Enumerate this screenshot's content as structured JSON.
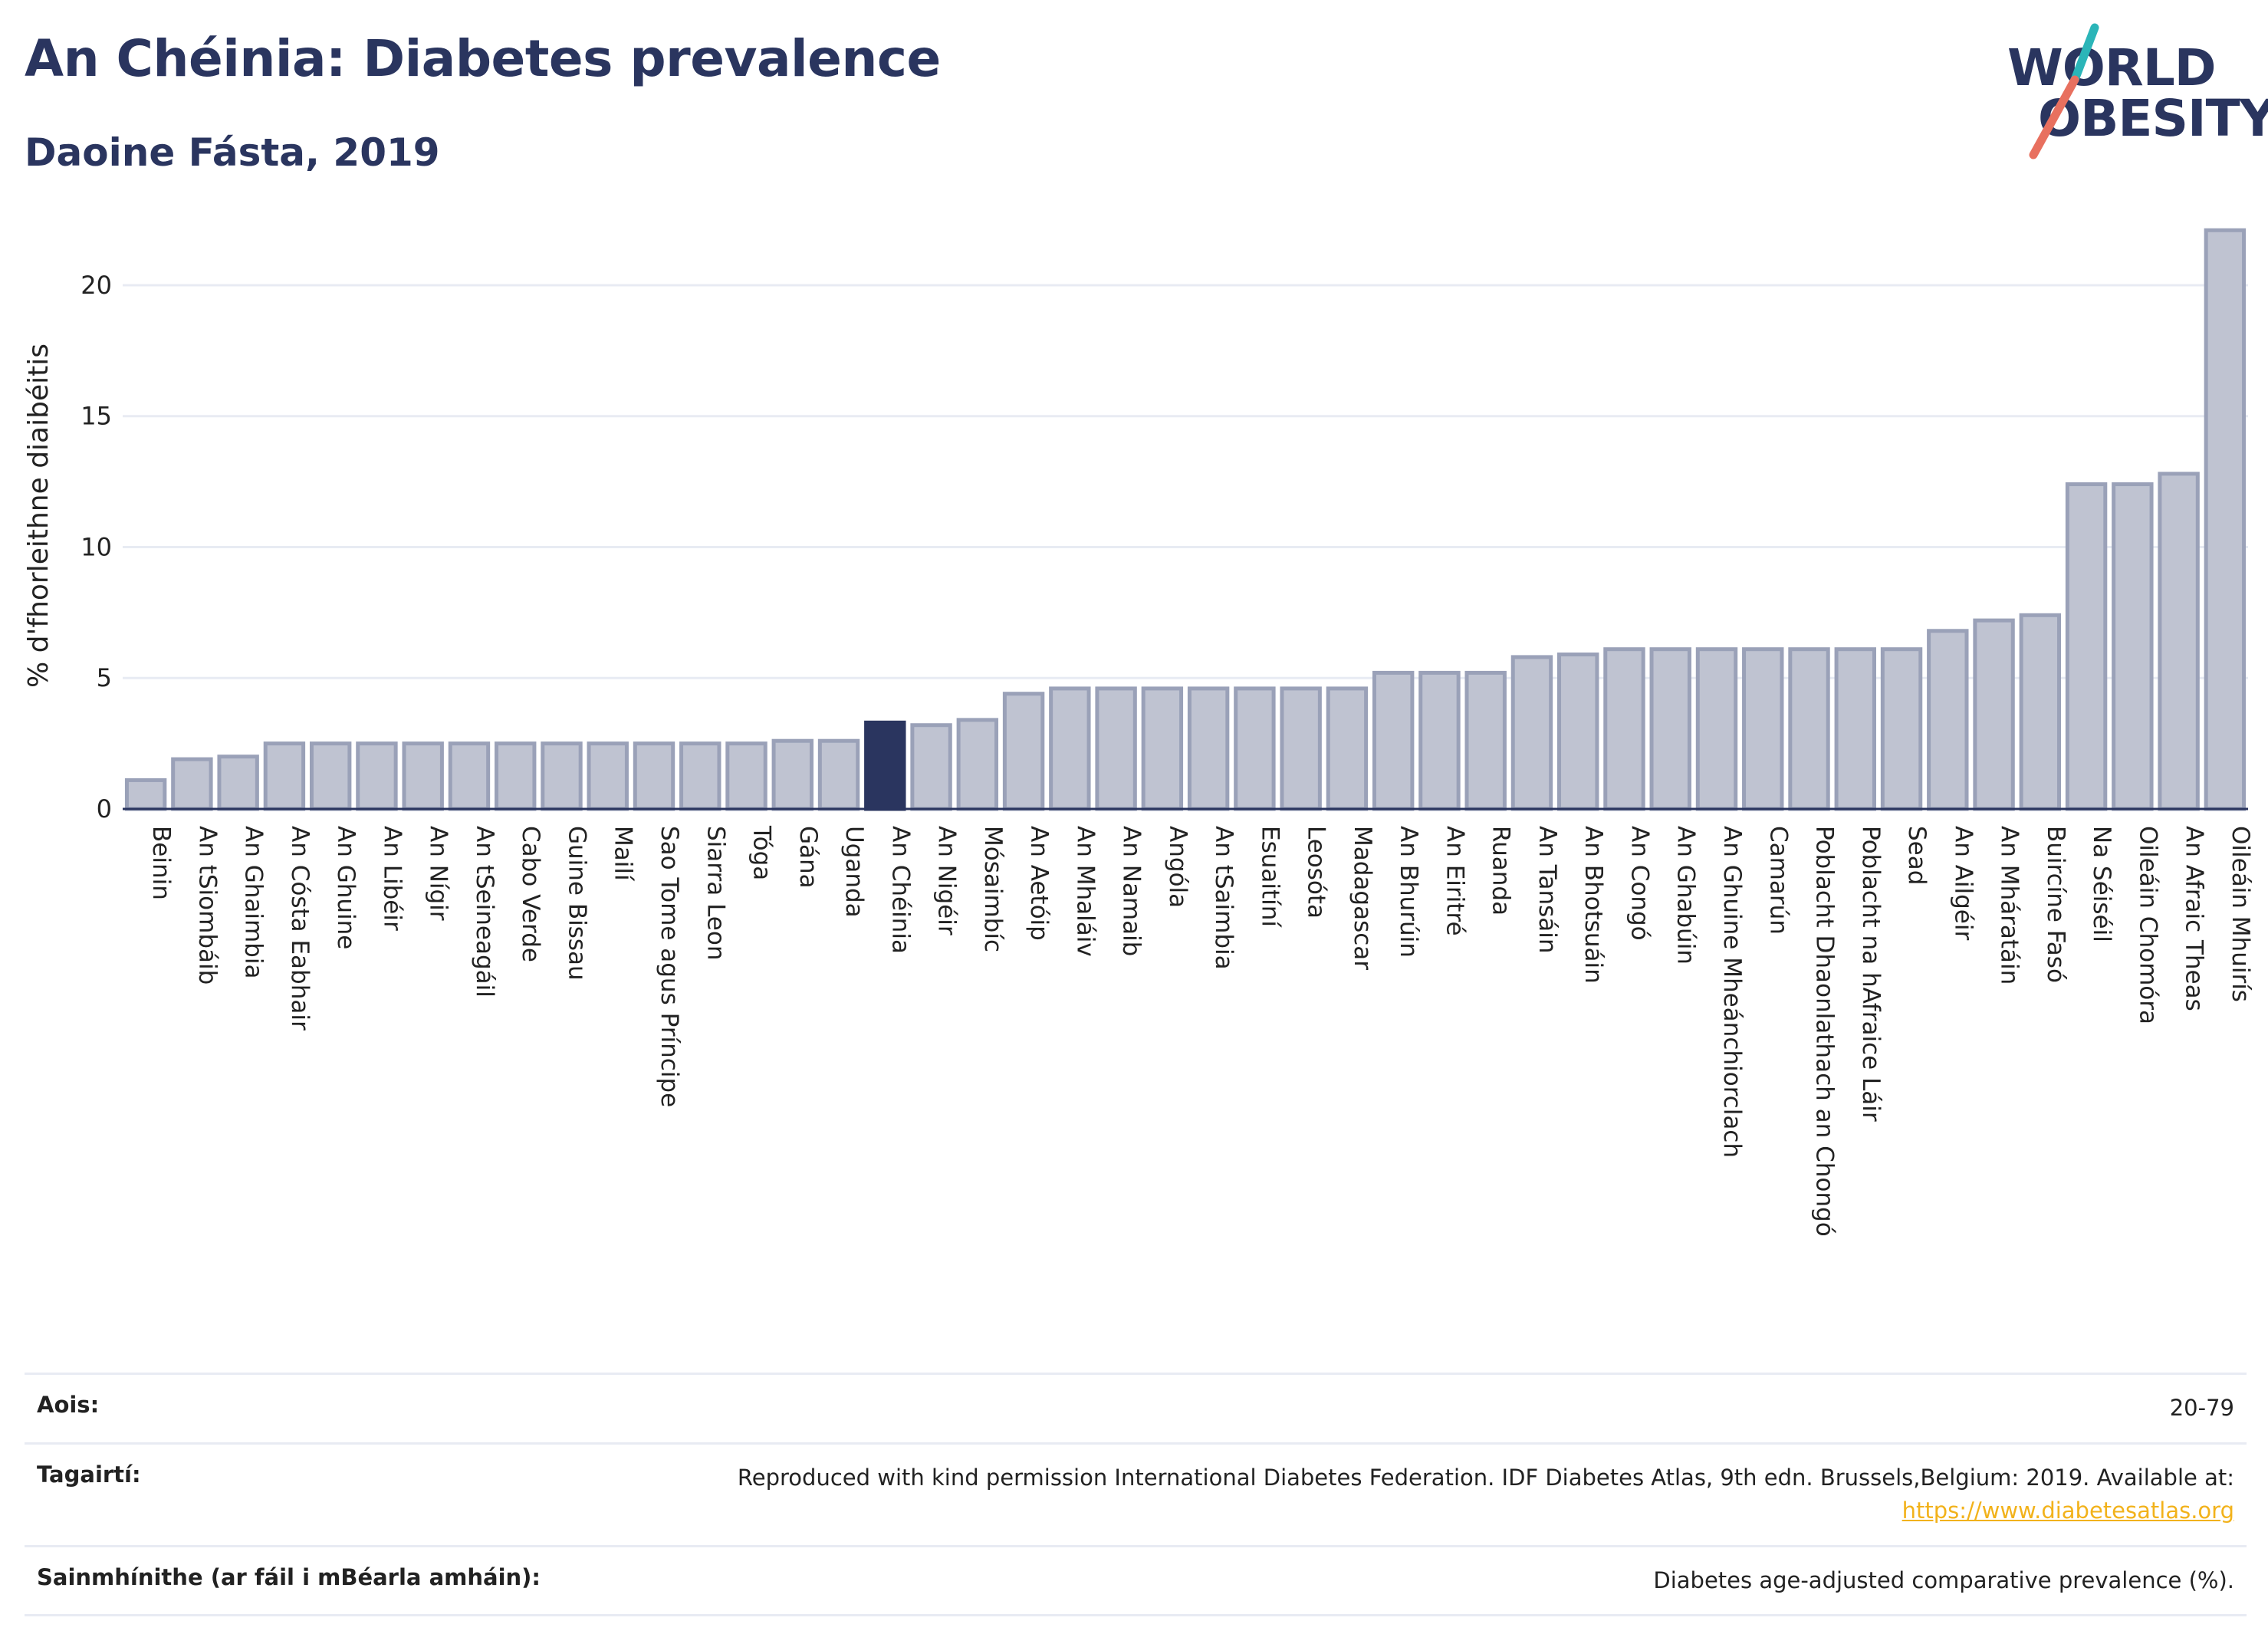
{
  "header": {
    "title": "An Chéinia: Diabetes prevalence",
    "subtitle": "Daoine Fásta, 2019"
  },
  "logo": {
    "line1": "WORLD",
    "line2": "OBESITY"
  },
  "colors": {
    "highlight": "#2a355f",
    "bar_fill": "#bfc3d1",
    "bar_stroke": "#9aa1b8",
    "slash_teal": "#2bb5b8",
    "slash_red": "#e8705f",
    "link": "#f2b21b"
  },
  "chart_data": {
    "type": "bar",
    "ylabel": "% d'fhorleithne diaibéitis",
    "ylim": [
      0,
      22.4
    ],
    "yticks": [
      0,
      5,
      10,
      15,
      20
    ],
    "grid": true,
    "highlight_category": "An Chéinia",
    "categories": [
      "Beinin",
      "An tSiombáib",
      "An Ghaimbia",
      "An Cósta Eabhair",
      "An Ghuine",
      "An Libéir",
      "An Nígir",
      "An tSeineagáil",
      "Cabo Verde",
      "Guine Bissau",
      "Mailí",
      "Sao Tome agus Príncipe",
      "Siarra Leon",
      "Tóga",
      "Gána",
      "Uganda",
      "An Chéinia",
      "An Nigéir",
      "Mósaimbíc",
      "An Aetóip",
      "An Mhaláiv",
      "An Namaib",
      "Angóla",
      "An tSaimbia",
      "Esuaitíní",
      "Leosóta",
      "Madagascar",
      "An Bhurúin",
      "An Eiritré",
      "Ruanda",
      "An Tansáin",
      "An Bhotsuáin",
      "An Congó",
      "An Ghabúin",
      "An Ghuine Mheánchiorclach",
      "Camarún",
      "Poblacht Dhaonlathach an Chongó",
      "Poblacht na hAfraice Láir",
      "Sead",
      "An Ailgéir",
      "An Mháratáin",
      "Buircíne Fasó",
      "Na Séiséil",
      "Oileáin Chomóra",
      "An Afraic Theas",
      "Oileáin Mhuirís"
    ],
    "values": [
      1.1,
      1.9,
      2.0,
      2.5,
      2.5,
      2.5,
      2.5,
      2.5,
      2.5,
      2.5,
      2.5,
      2.5,
      2.5,
      2.5,
      2.6,
      2.6,
      3.3,
      3.2,
      3.4,
      4.4,
      4.6,
      4.6,
      4.6,
      4.6,
      4.6,
      4.6,
      4.6,
      5.2,
      5.2,
      5.2,
      5.8,
      5.9,
      6.1,
      6.1,
      6.1,
      6.1,
      6.1,
      6.1,
      6.1,
      6.8,
      7.2,
      7.4,
      12.4,
      12.4,
      12.8,
      22.1
    ]
  },
  "footer": {
    "age_label": "Aois:",
    "age_value": "20-79",
    "refs_label": "Tagairtí:",
    "refs_text": "Reproduced with kind permission International Diabetes Federation. IDF Diabetes Atlas, 9th edn. Brussels,Belgium: 2019. Available at:",
    "refs_link": "https://www.diabetesatlas.org",
    "def_label": "Sainmhínithe (ar fáil i mBéarla amháin):",
    "def_value": "Diabetes age-adjusted comparative prevalence (%)."
  }
}
